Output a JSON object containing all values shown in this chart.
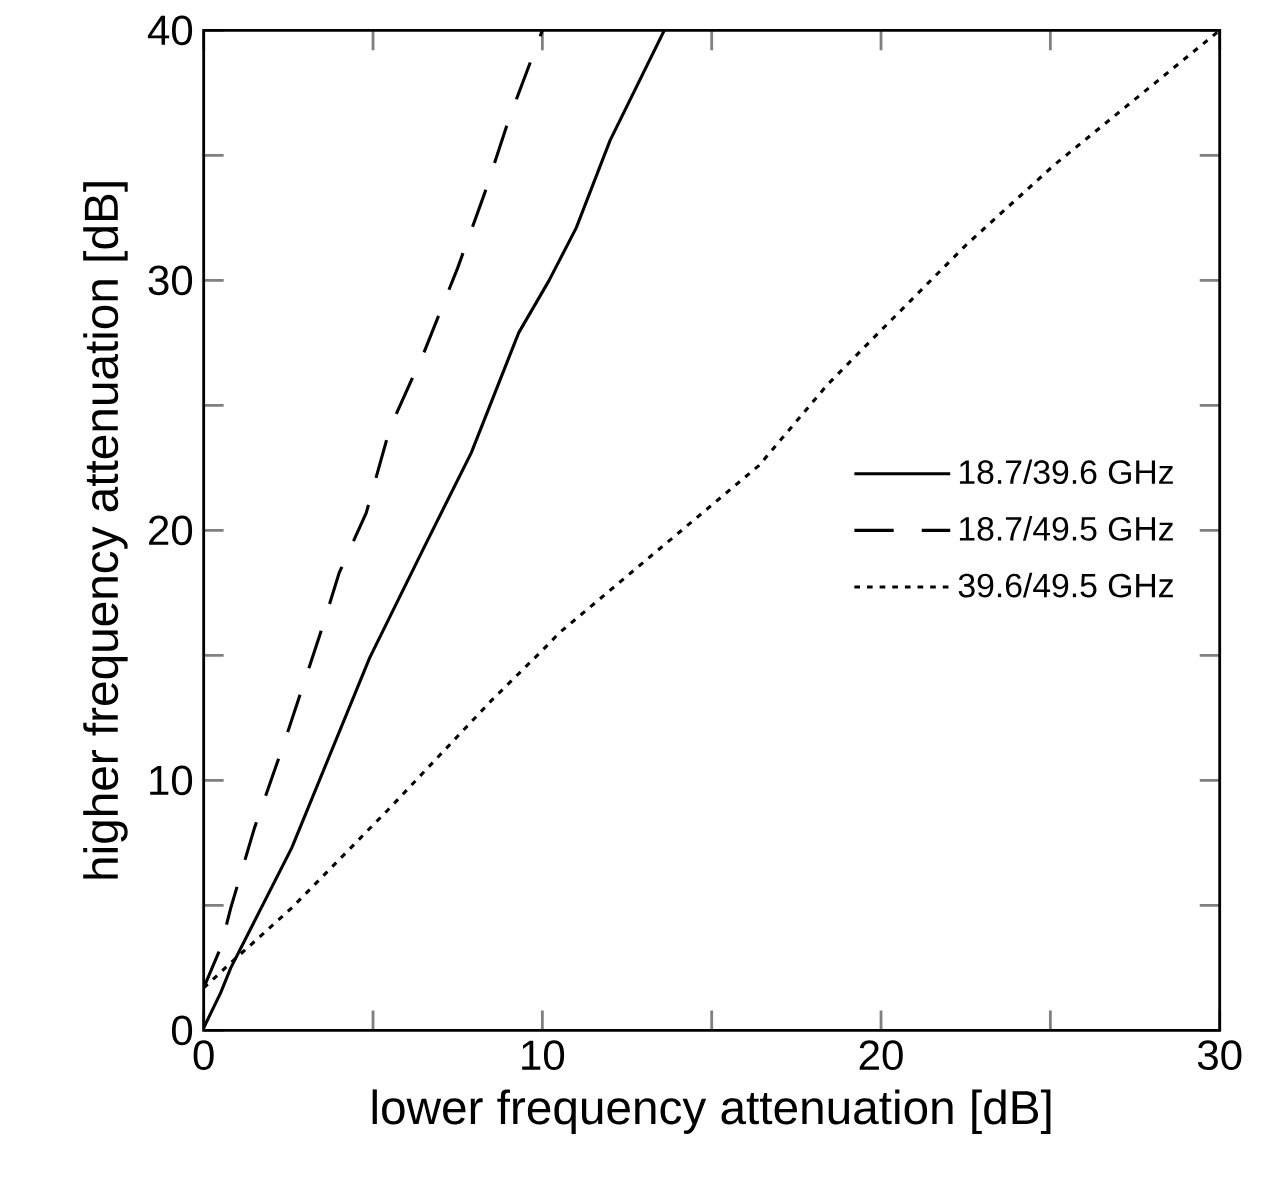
{
  "chart_data": {
    "type": "line",
    "xlabel": "lower frequency attenuation [dB]",
    "ylabel": "higher frequency attenuation [dB]",
    "xlim": [
      0,
      30
    ],
    "ylim": [
      0,
      40
    ],
    "xticks": [
      0,
      {
        "value": 5,
        "label": null
      },
      10,
      {
        "value": 15,
        "label": null
      },
      20,
      {
        "value": 25,
        "label": null
      },
      30
    ],
    "yticks": [
      0,
      {
        "value": 5,
        "label": null
      },
      10,
      {
        "value": 15,
        "label": null
      },
      20,
      {
        "value": 25,
        "label": null
      },
      30,
      {
        "value": 35,
        "label": null
      },
      40
    ],
    "legend": "right",
    "grid": false,
    "series": [
      {
        "name": "18.7/39.6 GHz",
        "color": "#000000",
        "line_style": "solid",
        "x": [
          0,
          0.5,
          0.8,
          2.6,
          4.9,
          6.5,
          7.9,
          9.3,
          10.2,
          11,
          12,
          13.6
        ],
        "values": [
          0.1,
          1.5,
          2.5,
          7.3,
          14.9,
          19.3,
          23.1,
          27.9,
          30,
          32.1,
          35.6,
          40
        ]
      },
      {
        "name": "18.7/49.5 GHz",
        "color": "#000000",
        "line_style": "dashed",
        "x": [
          0,
          0.5,
          0.8,
          1.5,
          2.4,
          3.5,
          4,
          4.8,
          5.5,
          6.5,
          7.5,
          8.3,
          9,
          10
        ],
        "values": [
          1.7,
          3.3,
          4.9,
          8.1,
          11.6,
          16.1,
          18.3,
          20.7,
          24.1,
          27.1,
          30.5,
          33.5,
          36.4,
          40
        ]
      },
      {
        "name": "39.6/49.5 GHz",
        "color": "#000000",
        "line_style": "dotted",
        "x": [
          0,
          0.8,
          2.6,
          5.5,
          8.5,
          10,
          10.5,
          16.4,
          18.4,
          20,
          22.5,
          25.1,
          30
        ],
        "values": [
          1.7,
          2.7,
          4.9,
          8.9,
          13.2,
          15.2,
          15.9,
          22.6,
          25.8,
          28,
          31.4,
          34.6,
          40
        ]
      }
    ]
  }
}
